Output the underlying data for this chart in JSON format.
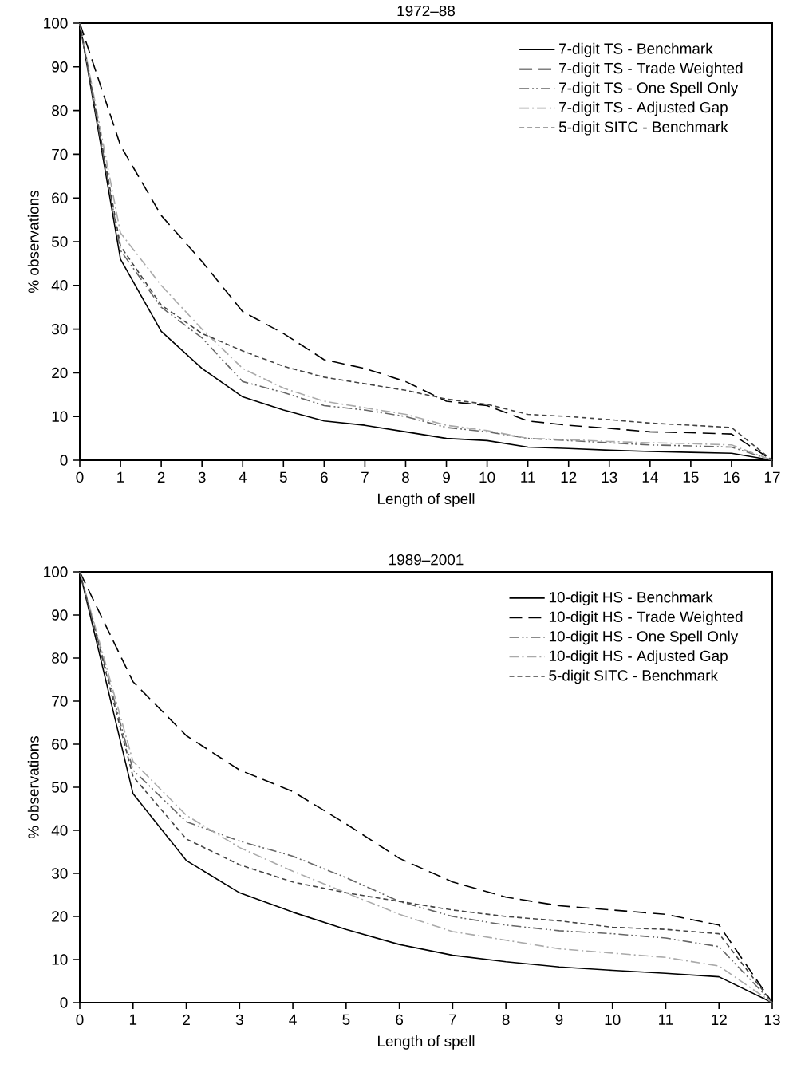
{
  "chart_data": [
    {
      "type": "line",
      "title": "1972–88",
      "xlabel": "Length of spell",
      "ylabel": "% observations",
      "x": [
        0,
        1,
        2,
        3,
        4,
        5,
        6,
        7,
        8,
        9,
        10,
        11,
        12,
        13,
        14,
        15,
        16,
        17
      ],
      "xlim": [
        0,
        17
      ],
      "xticks": [
        0,
        1,
        2,
        3,
        4,
        5,
        6,
        7,
        8,
        9,
        10,
        11,
        12,
        13,
        14,
        15,
        16,
        17
      ],
      "ylim": [
        0,
        100
      ],
      "yticks": [
        0,
        10,
        20,
        30,
        40,
        50,
        60,
        70,
        80,
        90,
        100
      ],
      "legend": "top right",
      "grid": false,
      "marker": "none",
      "series": [
        {
          "name": "7-digit TS - Benchmark",
          "color": "#000000",
          "line_style": "solid",
          "values": [
            100,
            46,
            29.5,
            21,
            14.5,
            11.5,
            9,
            8,
            6.5,
            5,
            4.5,
            3,
            2.7,
            2.3,
            2,
            1.8,
            1.6,
            0
          ]
        },
        {
          "name": "7-digit TS - Trade Weighted",
          "color": "#000000",
          "line_style": "longdashed",
          "values": [
            100,
            72,
            56,
            45.5,
            34,
            29,
            23,
            21,
            18,
            13.5,
            12.5,
            9,
            8,
            7.3,
            6.5,
            6.3,
            6,
            0
          ]
        },
        {
          "name": "7-digit TS - One Spell Only",
          "color": "#666666",
          "line_style": "dashdotdotted",
          "values": [
            100,
            48,
            35,
            28,
            18,
            15.5,
            12.5,
            11.5,
            10,
            7.5,
            6.5,
            5,
            4.5,
            4,
            3.5,
            3.3,
            3,
            0
          ]
        },
        {
          "name": "7-digit TS - Adjusted Gap",
          "color": "#aaaaaa",
          "line_style": "dashdotted",
          "values": [
            100,
            52,
            40,
            30,
            21,
            16.5,
            13.5,
            12,
            10.5,
            8,
            6.8,
            5,
            4.7,
            4.3,
            4,
            3.8,
            3.5,
            0
          ]
        },
        {
          "name": "5-digit SITC - Benchmark",
          "color": "#444444",
          "line_style": "dashed",
          "values": [
            100,
            49,
            35.5,
            29,
            25,
            21.5,
            19,
            17.5,
            16,
            14,
            12.8,
            10.5,
            10,
            9.3,
            8.5,
            8,
            7.5,
            0
          ]
        }
      ]
    },
    {
      "type": "line",
      "title": "1989–2001",
      "xlabel": "Length of spell",
      "ylabel": "% observations",
      "x": [
        0,
        1,
        2,
        3,
        4,
        5,
        6,
        7,
        8,
        9,
        10,
        11,
        12,
        13
      ],
      "xlim": [
        0,
        13
      ],
      "xticks": [
        0,
        1,
        2,
        3,
        4,
        5,
        6,
        7,
        8,
        9,
        10,
        11,
        12,
        13
      ],
      "ylim": [
        0,
        100
      ],
      "yticks": [
        0,
        10,
        20,
        30,
        40,
        50,
        60,
        70,
        80,
        90,
        100
      ],
      "legend": "top right",
      "grid": false,
      "marker": "none",
      "series": [
        {
          "name": "10-digit HS - Benchmark",
          "color": "#000000",
          "line_style": "solid",
          "values": [
            100,
            48.5,
            33,
            25.5,
            21,
            17,
            13.5,
            11,
            9.5,
            8.3,
            7.5,
            6.8,
            6,
            0
          ]
        },
        {
          "name": "10-digit HS - Trade Weighted",
          "color": "#000000",
          "line_style": "longdashed",
          "values": [
            100,
            74.5,
            62,
            54,
            49,
            41.5,
            33.5,
            28,
            24.5,
            22.5,
            21.5,
            20.5,
            18,
            0
          ]
        },
        {
          "name": "10-digit HS - One Spell Only",
          "color": "#666666",
          "line_style": "dashdotdotted",
          "values": [
            100,
            54,
            42,
            37.5,
            34,
            29,
            23.5,
            20,
            18,
            16.7,
            16,
            15,
            13,
            0
          ]
        },
        {
          "name": "10-digit HS - Adjusted Gap",
          "color": "#aaaaaa",
          "line_style": "dashdotted",
          "values": [
            100,
            56,
            43.5,
            36,
            30.5,
            25.5,
            20.5,
            16.5,
            14.5,
            12.5,
            11.5,
            10.5,
            8.5,
            0
          ]
        },
        {
          "name": "5-digit SITC - Benchmark",
          "color": "#444444",
          "line_style": "dashed",
          "values": [
            100,
            52.5,
            38,
            32,
            28,
            25.5,
            23.5,
            21.5,
            20,
            19,
            17.5,
            17,
            16,
            0
          ]
        }
      ]
    }
  ]
}
